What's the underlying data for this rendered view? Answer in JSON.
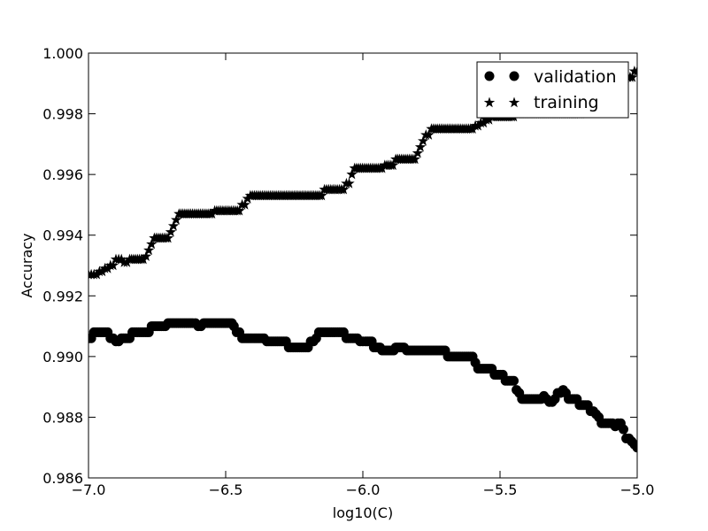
{
  "chart_data": {
    "type": "scatter",
    "title": "",
    "xlabel": "log10(C)",
    "ylabel": "Accuracy",
    "xlim": [
      -7.0,
      -5.0
    ],
    "ylim": [
      0.986,
      1.0
    ],
    "xticks": [
      -7.0,
      -6.5,
      -6.0,
      -5.5,
      -5.0
    ],
    "xtick_labels": [
      "−7.0",
      "−6.5",
      "−6.0",
      "−5.5",
      "−5.0"
    ],
    "yticks": [
      0.986,
      0.988,
      0.99,
      0.992,
      0.994,
      0.996,
      0.998,
      1.0
    ],
    "ytick_labels": [
      "0.986",
      "0.988",
      "0.990",
      "0.992",
      "0.994",
      "0.996",
      "0.998",
      "1.000"
    ],
    "grid": false,
    "legend_position": "top-right",
    "series": [
      {
        "name": "validation",
        "marker": "circle",
        "color": "#000000",
        "points": [
          [
            -7.0,
            0.9906
          ],
          [
            -6.98,
            0.9908
          ],
          [
            -6.93,
            0.9908
          ],
          [
            -6.92,
            0.9906
          ],
          [
            -6.9,
            0.9905
          ],
          [
            -6.88,
            0.9906
          ],
          [
            -6.85,
            0.9906
          ],
          [
            -6.84,
            0.9908
          ],
          [
            -6.78,
            0.9908
          ],
          [
            -6.77,
            0.991
          ],
          [
            -6.72,
            0.991
          ],
          [
            -6.71,
            0.9911
          ],
          [
            -6.62,
            0.9911
          ],
          [
            -6.6,
            0.991
          ],
          [
            -6.58,
            0.9911
          ],
          [
            -6.47,
            0.991
          ],
          [
            -6.46,
            0.9908
          ],
          [
            -6.44,
            0.9906
          ],
          [
            -6.36,
            0.9906
          ],
          [
            -6.35,
            0.9905
          ],
          [
            -6.28,
            0.9905
          ],
          [
            -6.27,
            0.9903
          ],
          [
            -6.2,
            0.9903
          ],
          [
            -6.19,
            0.9905
          ],
          [
            -6.17,
            0.9906
          ],
          [
            -6.16,
            0.9908
          ],
          [
            -6.07,
            0.9908
          ],
          [
            -6.06,
            0.9906
          ],
          [
            -6.02,
            0.9906
          ],
          [
            -6.01,
            0.9905
          ],
          [
            -5.99,
            0.9905
          ],
          [
            -5.96,
            0.9903
          ],
          [
            -5.93,
            0.9902
          ],
          [
            -5.88,
            0.9903
          ],
          [
            -5.85,
            0.9903
          ],
          [
            -5.84,
            0.9902
          ],
          [
            -5.7,
            0.9902
          ],
          [
            -5.69,
            0.99
          ],
          [
            -5.6,
            0.99
          ],
          [
            -5.59,
            0.9898
          ],
          [
            -5.58,
            0.9896
          ],
          [
            -5.53,
            0.9896
          ],
          [
            -5.52,
            0.9894
          ],
          [
            -5.49,
            0.9894
          ],
          [
            -5.48,
            0.9892
          ],
          [
            -5.45,
            0.9892
          ],
          [
            -5.44,
            0.9889
          ],
          [
            -5.43,
            0.9888
          ],
          [
            -5.42,
            0.9886
          ],
          [
            -5.35,
            0.9886
          ],
          [
            -5.34,
            0.9887
          ],
          [
            -5.33,
            0.9886
          ],
          [
            -5.32,
            0.9885
          ],
          [
            -5.31,
            0.9885
          ],
          [
            -5.3,
            0.9886
          ],
          [
            -5.29,
            0.9888
          ],
          [
            -5.27,
            0.9889
          ],
          [
            -5.26,
            0.9888
          ],
          [
            -5.25,
            0.9886
          ],
          [
            -5.22,
            0.9886
          ],
          [
            -5.21,
            0.9884
          ],
          [
            -5.18,
            0.9884
          ],
          [
            -5.17,
            0.9882
          ],
          [
            -5.16,
            0.9882
          ],
          [
            -5.15,
            0.9881
          ],
          [
            -5.14,
            0.988
          ],
          [
            -5.13,
            0.9878
          ],
          [
            -5.09,
            0.9878
          ],
          [
            -5.08,
            0.9877
          ],
          [
            -5.07,
            0.9878
          ],
          [
            -5.06,
            0.9878
          ],
          [
            -5.05,
            0.9876
          ],
          [
            -5.04,
            0.9873
          ],
          [
            -5.03,
            0.9873
          ],
          [
            -5.02,
            0.9872
          ],
          [
            -5.01,
            0.9871
          ],
          [
            -5.0,
            0.987
          ]
        ]
      },
      {
        "name": "training",
        "marker": "star",
        "color": "#000000",
        "points": [
          [
            -7.0,
            0.9927
          ],
          [
            -6.98,
            0.9927
          ],
          [
            -6.96,
            0.9928
          ],
          [
            -6.94,
            0.9929
          ],
          [
            -6.92,
            0.993
          ],
          [
            -6.9,
            0.9932
          ],
          [
            -6.88,
            0.9932
          ],
          [
            -6.87,
            0.9931
          ],
          [
            -6.85,
            0.9932
          ],
          [
            -6.8,
            0.9932
          ],
          [
            -6.79,
            0.9933
          ],
          [
            -6.78,
            0.9935
          ],
          [
            -6.77,
            0.9937
          ],
          [
            -6.76,
            0.9939
          ],
          [
            -6.71,
            0.9939
          ],
          [
            -6.7,
            0.9941
          ],
          [
            -6.69,
            0.9943
          ],
          [
            -6.68,
            0.9945
          ],
          [
            -6.67,
            0.9947
          ],
          [
            -6.55,
            0.9947
          ],
          [
            -6.54,
            0.9948
          ],
          [
            -6.45,
            0.9948
          ],
          [
            -6.44,
            0.995
          ],
          [
            -6.42,
            0.9952
          ],
          [
            -6.41,
            0.9953
          ],
          [
            -6.2,
            0.9953
          ],
          [
            -6.15,
            0.9953
          ],
          [
            -6.14,
            0.9955
          ],
          [
            -6.07,
            0.9955
          ],
          [
            -6.06,
            0.9957
          ],
          [
            -6.04,
            0.996
          ],
          [
            -6.03,
            0.9962
          ],
          [
            -5.93,
            0.9962
          ],
          [
            -5.92,
            0.9963
          ],
          [
            -5.89,
            0.9963
          ],
          [
            -5.88,
            0.9965
          ],
          [
            -5.81,
            0.9965
          ],
          [
            -5.8,
            0.9967
          ],
          [
            -5.79,
            0.9969
          ],
          [
            -5.78,
            0.9971
          ],
          [
            -5.77,
            0.9973
          ],
          [
            -5.75,
            0.9975
          ],
          [
            -5.6,
            0.9975
          ],
          [
            -5.59,
            0.9976
          ],
          [
            -5.57,
            0.9977
          ],
          [
            -5.55,
            0.9978
          ],
          [
            -5.53,
            0.9979
          ],
          [
            -5.45,
            0.9979
          ],
          [
            -5.44,
            0.998
          ],
          [
            -5.3,
            0.998
          ],
          [
            -5.2,
            0.9986
          ],
          [
            -5.1,
            0.999
          ],
          [
            -5.05,
            0.9992
          ],
          [
            -5.01,
            0.9994
          ],
          [
            -5.0,
            0.9994
          ]
        ]
      }
    ]
  }
}
